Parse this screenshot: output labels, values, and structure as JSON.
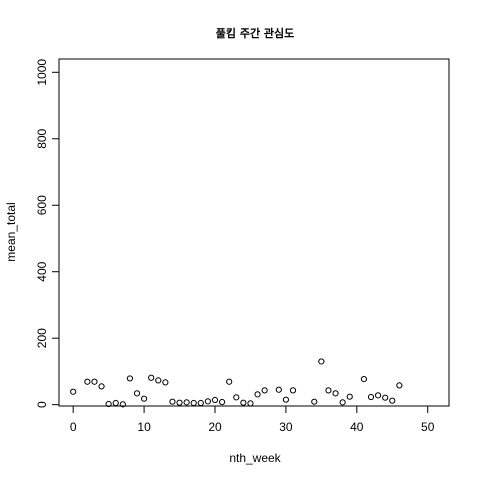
{
  "chart_data": {
    "type": "scatter",
    "title": "풀킴 주간 관심도",
    "xlabel": "nth_week",
    "ylabel": "mean_total",
    "xlim": [
      -2,
      53
    ],
    "ylim": [
      -4,
      1040
    ],
    "x_ticks": [
      0,
      10,
      20,
      30,
      40,
      50
    ],
    "y_ticks": [
      0,
      200,
      400,
      600,
      800,
      1000
    ],
    "grid": false,
    "marker": "open-circle",
    "points": [
      {
        "x": 0,
        "y": 39
      },
      {
        "x": 2,
        "y": 69
      },
      {
        "x": 3,
        "y": 69
      },
      {
        "x": 4,
        "y": 55
      },
      {
        "x": 5,
        "y": 2
      },
      {
        "x": 6,
        "y": 5
      },
      {
        "x": 7,
        "y": 1
      },
      {
        "x": 8,
        "y": 79
      },
      {
        "x": 9,
        "y": 34
      },
      {
        "x": 10,
        "y": 18
      },
      {
        "x": 11,
        "y": 81
      },
      {
        "x": 12,
        "y": 73
      },
      {
        "x": 13,
        "y": 67
      },
      {
        "x": 14,
        "y": 9
      },
      {
        "x": 15,
        "y": 6
      },
      {
        "x": 16,
        "y": 7
      },
      {
        "x": 17,
        "y": 5
      },
      {
        "x": 18,
        "y": 5
      },
      {
        "x": 19,
        "y": 10
      },
      {
        "x": 20,
        "y": 14
      },
      {
        "x": 21,
        "y": 8
      },
      {
        "x": 22,
        "y": 69
      },
      {
        "x": 23,
        "y": 22
      },
      {
        "x": 24,
        "y": 6
      },
      {
        "x": 25,
        "y": 4
      },
      {
        "x": 26,
        "y": 31
      },
      {
        "x": 27,
        "y": 43
      },
      {
        "x": 29,
        "y": 45
      },
      {
        "x": 30,
        "y": 15
      },
      {
        "x": 31,
        "y": 43
      },
      {
        "x": 34,
        "y": 9
      },
      {
        "x": 35,
        "y": 130
      },
      {
        "x": 36,
        "y": 43
      },
      {
        "x": 37,
        "y": 34
      },
      {
        "x": 38,
        "y": 7
      },
      {
        "x": 39,
        "y": 24
      },
      {
        "x": 41,
        "y": 77
      },
      {
        "x": 42,
        "y": 23
      },
      {
        "x": 43,
        "y": 28
      },
      {
        "x": 44,
        "y": 21
      },
      {
        "x": 45,
        "y": 12
      },
      {
        "x": 46,
        "y": 58
      }
    ]
  }
}
